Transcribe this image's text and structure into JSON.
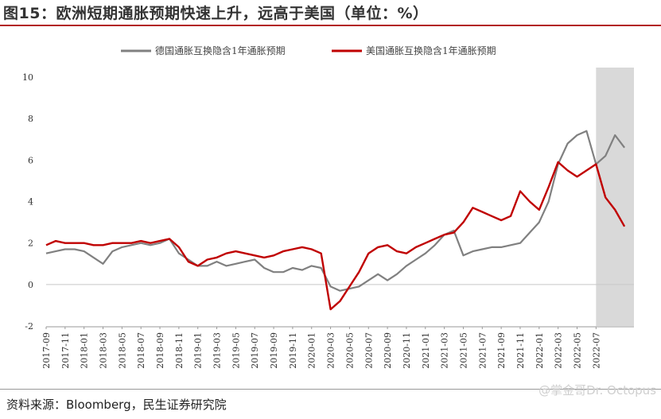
{
  "title": "图15：欧洲短期通胀预期快速上升，远高于美国（单位：%）",
  "source": "资料来源：Bloomberg，民生证券研究院",
  "watermark": "@掌金哥Dr. Octopus",
  "chart_data": {
    "type": "line",
    "title": "",
    "xlabel": "",
    "ylabel": "",
    "ylim": [
      -2,
      10
    ],
    "yticks": [
      -2,
      0,
      2,
      4,
      6,
      8,
      10
    ],
    "xlim": [
      "2017-09",
      "2022-11"
    ],
    "xticks": [
      "2017-09",
      "2017-11",
      "2018-01",
      "2018-03",
      "2018-05",
      "2018-07",
      "2018-09",
      "2018-11",
      "2019-01",
      "2019-03",
      "2019-05",
      "2019-07",
      "2019-09",
      "2019-11",
      "2020-01",
      "2020-03",
      "2020-05",
      "2020-07",
      "2020-09",
      "2020-11",
      "2021-01",
      "2021-03",
      "2021-05",
      "2021-07",
      "2021-09",
      "2021-11",
      "2022-01",
      "2022-03",
      "2022-05",
      "2022-07"
    ],
    "legend_position": "top",
    "shaded_region": {
      "from": "2022-07",
      "to": "2022-11",
      "color": "#d9d9d9"
    },
    "series": [
      {
        "name": "德国通胀互换隐含1年通胀预期",
        "color": "#808080",
        "x": [
          "2017-09",
          "2017-10",
          "2017-11",
          "2017-12",
          "2018-01",
          "2018-02",
          "2018-03",
          "2018-04",
          "2018-05",
          "2018-06",
          "2018-07",
          "2018-08",
          "2018-09",
          "2018-10",
          "2018-11",
          "2018-12",
          "2019-01",
          "2019-02",
          "2019-03",
          "2019-04",
          "2019-05",
          "2019-06",
          "2019-07",
          "2019-08",
          "2019-09",
          "2019-10",
          "2019-11",
          "2019-12",
          "2020-01",
          "2020-02",
          "2020-03",
          "2020-04",
          "2020-05",
          "2020-06",
          "2020-07",
          "2020-08",
          "2020-09",
          "2020-10",
          "2020-11",
          "2020-12",
          "2021-01",
          "2021-02",
          "2021-03",
          "2021-04",
          "2021-05",
          "2021-06",
          "2021-07",
          "2021-08",
          "2021-09",
          "2021-10",
          "2021-11",
          "2021-12",
          "2022-01",
          "2022-02",
          "2022-03",
          "2022-04",
          "2022-05",
          "2022-06",
          "2022-07",
          "2022-08",
          "2022-09",
          "2022-10"
        ],
        "values": [
          1.5,
          1.6,
          1.7,
          1.7,
          1.6,
          1.3,
          1.0,
          1.6,
          1.8,
          1.9,
          2.0,
          1.9,
          2.0,
          2.2,
          1.5,
          1.2,
          0.9,
          0.9,
          1.1,
          0.9,
          1.0,
          1.1,
          1.2,
          0.8,
          0.6,
          0.6,
          0.8,
          0.7,
          0.9,
          0.8,
          -0.1,
          -0.3,
          -0.2,
          -0.1,
          0.2,
          0.5,
          0.2,
          0.5,
          0.9,
          1.2,
          1.5,
          1.9,
          2.4,
          2.6,
          1.4,
          1.6,
          1.7,
          1.8,
          1.8,
          1.9,
          2.0,
          2.5,
          3.0,
          4.0,
          5.8,
          6.8,
          7.2,
          7.4,
          5.8,
          6.2,
          7.2,
          6.6
        ]
      },
      {
        "name": "美国通胀互换隐含1年通胀预期",
        "color": "#c00000",
        "x": [
          "2017-09",
          "2017-10",
          "2017-11",
          "2017-12",
          "2018-01",
          "2018-02",
          "2018-03",
          "2018-04",
          "2018-05",
          "2018-06",
          "2018-07",
          "2018-08",
          "2018-09",
          "2018-10",
          "2018-11",
          "2018-12",
          "2019-01",
          "2019-02",
          "2019-03",
          "2019-04",
          "2019-05",
          "2019-06",
          "2019-07",
          "2019-08",
          "2019-09",
          "2019-10",
          "2019-11",
          "2019-12",
          "2020-01",
          "2020-02",
          "2020-03",
          "2020-04",
          "2020-05",
          "2020-06",
          "2020-07",
          "2020-08",
          "2020-09",
          "2020-10",
          "2020-11",
          "2020-12",
          "2021-01",
          "2021-02",
          "2021-03",
          "2021-04",
          "2021-05",
          "2021-06",
          "2021-07",
          "2021-08",
          "2021-09",
          "2021-10",
          "2021-11",
          "2021-12",
          "2022-01",
          "2022-02",
          "2022-03",
          "2022-04",
          "2022-05",
          "2022-06",
          "2022-07",
          "2022-08",
          "2022-09",
          "2022-10"
        ],
        "values": [
          1.9,
          2.1,
          2.0,
          2.0,
          2.0,
          1.9,
          1.9,
          2.0,
          2.0,
          2.0,
          2.1,
          2.0,
          2.1,
          2.2,
          1.8,
          1.1,
          0.9,
          1.2,
          1.3,
          1.5,
          1.6,
          1.5,
          1.4,
          1.3,
          1.4,
          1.6,
          1.7,
          1.8,
          1.7,
          1.5,
          -1.2,
          -0.8,
          -0.1,
          0.6,
          1.5,
          1.8,
          1.9,
          1.6,
          1.5,
          1.8,
          2.0,
          2.2,
          2.4,
          2.5,
          3.0,
          3.7,
          3.5,
          3.3,
          3.1,
          3.3,
          4.5,
          4.0,
          3.6,
          4.7,
          5.9,
          5.5,
          5.2,
          5.5,
          5.8,
          4.2,
          3.6,
          2.8
        ]
      }
    ]
  }
}
